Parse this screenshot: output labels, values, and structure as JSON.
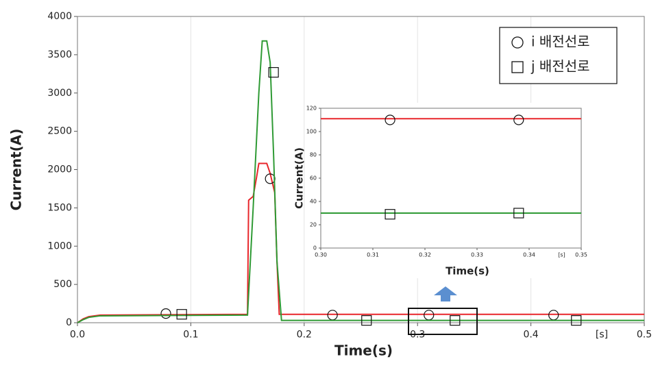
{
  "chart_data": [
    {
      "type": "line",
      "ylabel": "Current(A)",
      "xlabel": "Time(s)",
      "x_unit": "[s]",
      "xlim": [
        0,
        0.5
      ],
      "ylim": [
        0,
        4000
      ],
      "xticks": [
        {
          "value": 0,
          "label": "0.0"
        },
        0.1,
        0.2,
        0.3,
        0.4,
        0.5
      ],
      "yticks": [
        0,
        500,
        1000,
        1500,
        2000,
        2500,
        3000,
        3500,
        4000
      ],
      "grid": "x",
      "legend": "upper right",
      "series": [
        {
          "name": "i 배전선로",
          "color": "#e8262b",
          "marker": "circle",
          "x": [
            0,
            0.005,
            0.01,
            0.02,
            0.15,
            0.151,
            0.155,
            0.158,
            0.16,
            0.167,
            0.17,
            0.174,
            0.176,
            0.178,
            0.5
          ],
          "values": [
            0,
            50,
            80,
            100,
            110,
            1600,
            1650,
            1900,
            2080,
            2080,
            1950,
            1700,
            800,
            110,
            110
          ],
          "marker_x": [
            0.078,
            0.17,
            0.225,
            0.31,
            0.42
          ],
          "marker_values": [
            120,
            1880,
            100,
            100,
            100
          ]
        },
        {
          "name": "j 배전선로",
          "color": "#2e9a34",
          "marker": "square",
          "x": [
            0,
            0.005,
            0.01,
            0.02,
            0.15,
            0.155,
            0.16,
            0.163,
            0.167,
            0.17,
            0.173,
            0.176,
            0.18,
            0.5
          ],
          "values": [
            0,
            40,
            70,
            90,
            100,
            1500,
            3000,
            3680,
            3680,
            3400,
            2200,
            800,
            30,
            30
          ],
          "marker_x": [
            0.092,
            0.173,
            0.255,
            0.333,
            0.44
          ],
          "marker_values": [
            110,
            3270,
            30,
            30,
            30
          ]
        }
      ]
    },
    {
      "type": "line",
      "ylabel": "Current(A)",
      "xlabel": "Time(s)",
      "x_unit": "[s]",
      "xlim": [
        0.3,
        0.35
      ],
      "ylim": [
        0,
        120
      ],
      "xticks": [
        {
          "value": 0.3,
          "label": "0.30"
        },
        0.31,
        0.32,
        0.33,
        0.34,
        0.35
      ],
      "yticks": [
        0,
        20,
        40,
        60,
        80,
        100,
        120
      ],
      "series": [
        {
          "color": "#e8262b",
          "marker": "circle",
          "x": [
            0.3,
            0.35
          ],
          "values": [
            111,
            111
          ],
          "marker_x": [
            0.3133,
            0.338
          ],
          "marker_values": [
            110,
            110
          ]
        },
        {
          "color": "#2e9a34",
          "marker": "square",
          "x": [
            0.3,
            0.35
          ],
          "values": [
            30,
            30
          ],
          "marker_x": [
            0.3133,
            0.338
          ],
          "marker_values": [
            29,
            30
          ]
        }
      ]
    }
  ]
}
